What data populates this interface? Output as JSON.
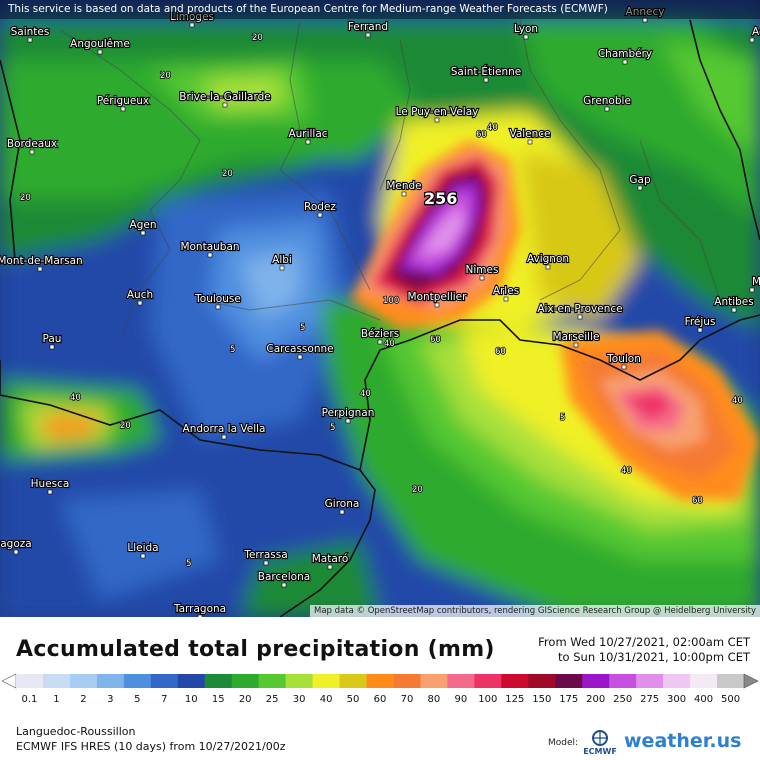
{
  "disclaimer": "This service is based on data and products of the European Centre for Medium-range Weather Forecasts (ECMWF)",
  "attribution": "Map data © OpenStreetMap contributors, rendering GIScience Research Group @ Heidelberg University",
  "title": "Accumulated total precipitation (mm)",
  "period": {
    "from": "From Wed 10/27/2021, 02:00am CET",
    "to": "to Sun 10/31/2021, 10:00pm CET"
  },
  "region": "Languedoc-Roussillon",
  "model_run": "ECMWF IFS HRES (10 days) from 10/27/2021/00z",
  "model_label": "Model:",
  "ecmwf_logo_text": "ECMWF",
  "brand": "weather.us",
  "brand_colors": {
    "weather": "#2f7fd0",
    "us": "#2f7fd0"
  },
  "scale": [
    {
      "label": "0.1",
      "color": "#e8e8f4"
    },
    {
      "label": "1",
      "color": "#c8dcf4"
    },
    {
      "label": "2",
      "color": "#a8cdf2"
    },
    {
      "label": "3",
      "color": "#7fb3ea"
    },
    {
      "label": "5",
      "color": "#4f8fe0"
    },
    {
      "label": "7",
      "color": "#3368c8"
    },
    {
      "label": "10",
      "color": "#2248a8"
    },
    {
      "label": "15",
      "color": "#1c8a36"
    },
    {
      "label": "20",
      "color": "#2eaa2e"
    },
    {
      "label": "25",
      "color": "#55c832"
    },
    {
      "label": "30",
      "color": "#a8e03a"
    },
    {
      "label": "40",
      "color": "#f0f028"
    },
    {
      "label": "50",
      "color": "#d8c818"
    },
    {
      "label": "60",
      "color": "#ff8c1a"
    },
    {
      "label": "70",
      "color": "#f57a32"
    },
    {
      "label": "80",
      "color": "#f8a070"
    },
    {
      "label": "90",
      "color": "#f46a8a"
    },
    {
      "label": "100",
      "color": "#ee3266"
    },
    {
      "label": "125",
      "color": "#cc0a30"
    },
    {
      "label": "150",
      "color": "#a00a28"
    },
    {
      "label": "175",
      "color": "#6a0a4a"
    },
    {
      "label": "200",
      "color": "#9a16c8"
    },
    {
      "label": "250",
      "color": "#c850e0"
    },
    {
      "label": "275",
      "color": "#e090ea"
    },
    {
      "label": "300",
      "color": "#f0c6f2"
    },
    {
      "label": "400",
      "color": "#f4eaf4"
    },
    {
      "label": "500",
      "color": "#c8c8c8"
    }
  ],
  "cities": [
    {
      "name": "Limoges"
    },
    {
      "name": "Ferrand"
    },
    {
      "name": "Lyon"
    },
    {
      "name": "Annecy"
    },
    {
      "name": "Saintes"
    },
    {
      "name": "Angoulême"
    },
    {
      "name": "Saint-Étienne"
    },
    {
      "name": "Chambéry"
    },
    {
      "name": "Aost"
    },
    {
      "name": "Périgueux"
    },
    {
      "name": "Brive-la-Gaillarde"
    },
    {
      "name": "Le Puy-en-Velay"
    },
    {
      "name": "Grenoble"
    },
    {
      "name": "Bordeaux"
    },
    {
      "name": "Aurillac"
    },
    {
      "name": "Valence"
    },
    {
      "name": "Mende"
    },
    {
      "name": "Gap"
    },
    {
      "name": "Rodez"
    },
    {
      "name": "Agen"
    },
    {
      "name": "Montauban"
    },
    {
      "name": "Mont-de-Marsan"
    },
    {
      "name": "Albi"
    },
    {
      "name": "Nîmes"
    },
    {
      "name": "Avignon"
    },
    {
      "name": "Auch"
    },
    {
      "name": "Toulouse"
    },
    {
      "name": "Montpellier"
    },
    {
      "name": "Arles"
    },
    {
      "name": "Aix-en-Provence"
    },
    {
      "name": "Antibes"
    },
    {
      "name": "Mo"
    },
    {
      "name": "Fréjus"
    },
    {
      "name": "Pau"
    },
    {
      "name": "Béziers"
    },
    {
      "name": "Carcassonne"
    },
    {
      "name": "Marseille"
    },
    {
      "name": "Toulon"
    },
    {
      "name": "Perpignan"
    },
    {
      "name": "Andorra la Vella"
    },
    {
      "name": "Huesca"
    },
    {
      "name": "Girona"
    },
    {
      "name": "agoza"
    },
    {
      "name": "Lleida"
    },
    {
      "name": "Terrassa"
    },
    {
      "name": "Mataró"
    },
    {
      "name": "Barcelona"
    },
    {
      "name": "Tarragona"
    }
  ],
  "contour_labels": [
    "20",
    "20",
    "40",
    "60",
    "40",
    "100",
    "60",
    "60",
    "40",
    "40",
    "5",
    "5",
    "40",
    "20",
    "20",
    "40",
    "60",
    "5",
    "20",
    "20",
    "5",
    "5"
  ],
  "peak_value": "256"
}
